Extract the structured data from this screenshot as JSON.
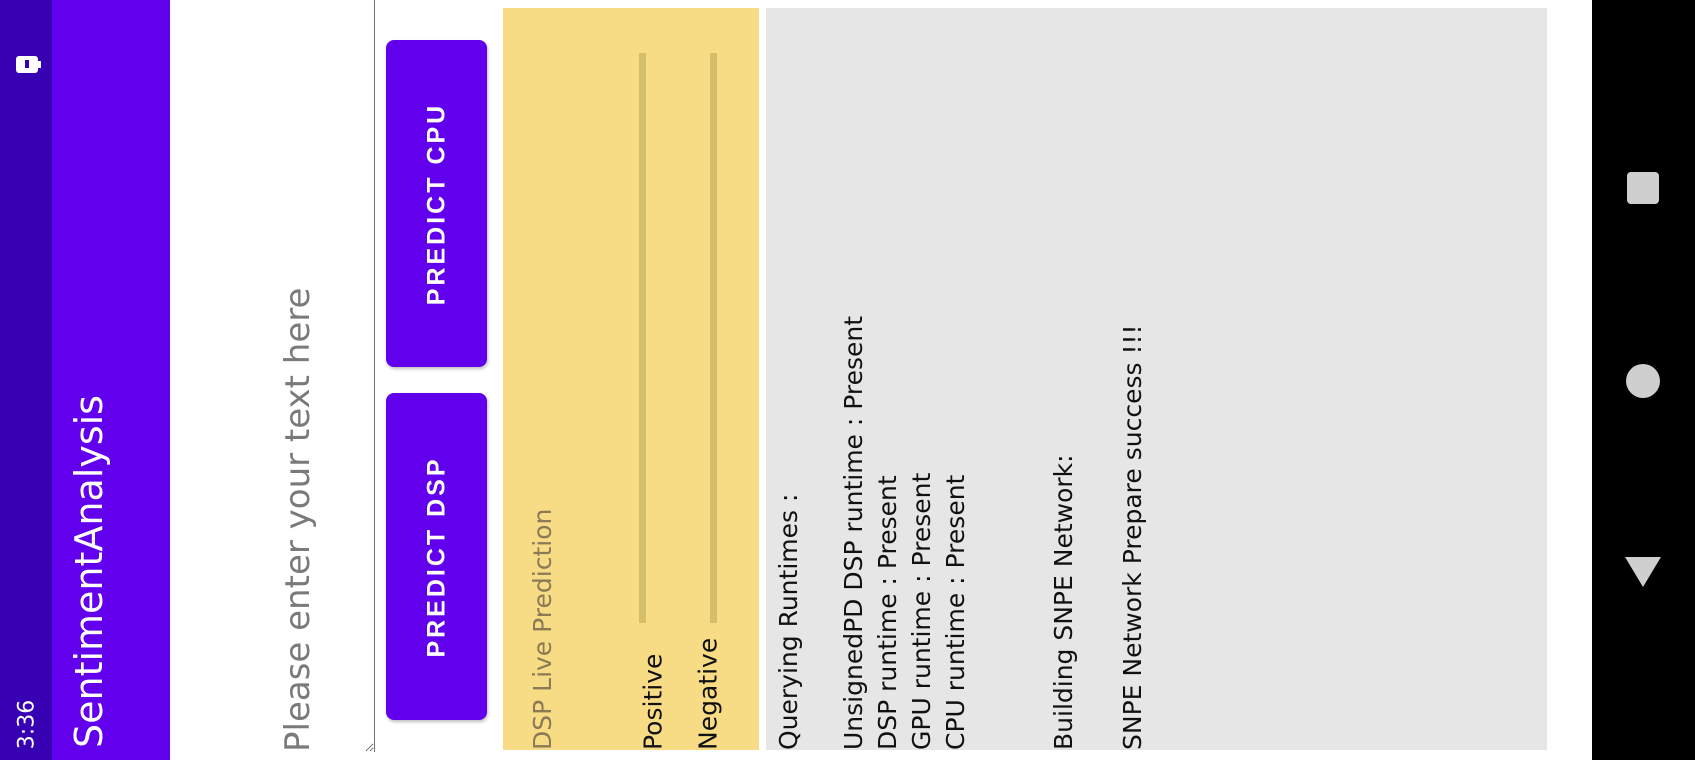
{
  "status_bar": {
    "time": "3:36",
    "battery_icon": "battery-icon"
  },
  "app_bar": {
    "title": "SentimentAnalysis"
  },
  "input": {
    "value": "",
    "placeholder": "Please enter your text here"
  },
  "buttons": {
    "predict_dsp": "PREDICT DSP",
    "predict_cpu": "PREDICT CPU"
  },
  "prediction": {
    "title": "DSP Live Prediction",
    "positive_label": "Positive",
    "negative_label": "Negative"
  },
  "log": {
    "lines": [
      "Querying Runtimes :",
      "UnsignedPD DSP runtime : Present",
      "DSP runtime : Present",
      "GPU runtime : Present",
      "CPU runtime : Present",
      "Building SNPE Network:",
      "SNPE Network Prepare success !!!"
    ]
  },
  "nav_bar": {
    "recent_icon": "square-icon",
    "home_icon": "circle-icon",
    "back_icon": "triangle-icon"
  },
  "colors": {
    "status_bar": "#3700b3",
    "primary": "#6200ee",
    "prediction_panel": "#f7dc85",
    "log_panel": "#e6e6e6"
  }
}
